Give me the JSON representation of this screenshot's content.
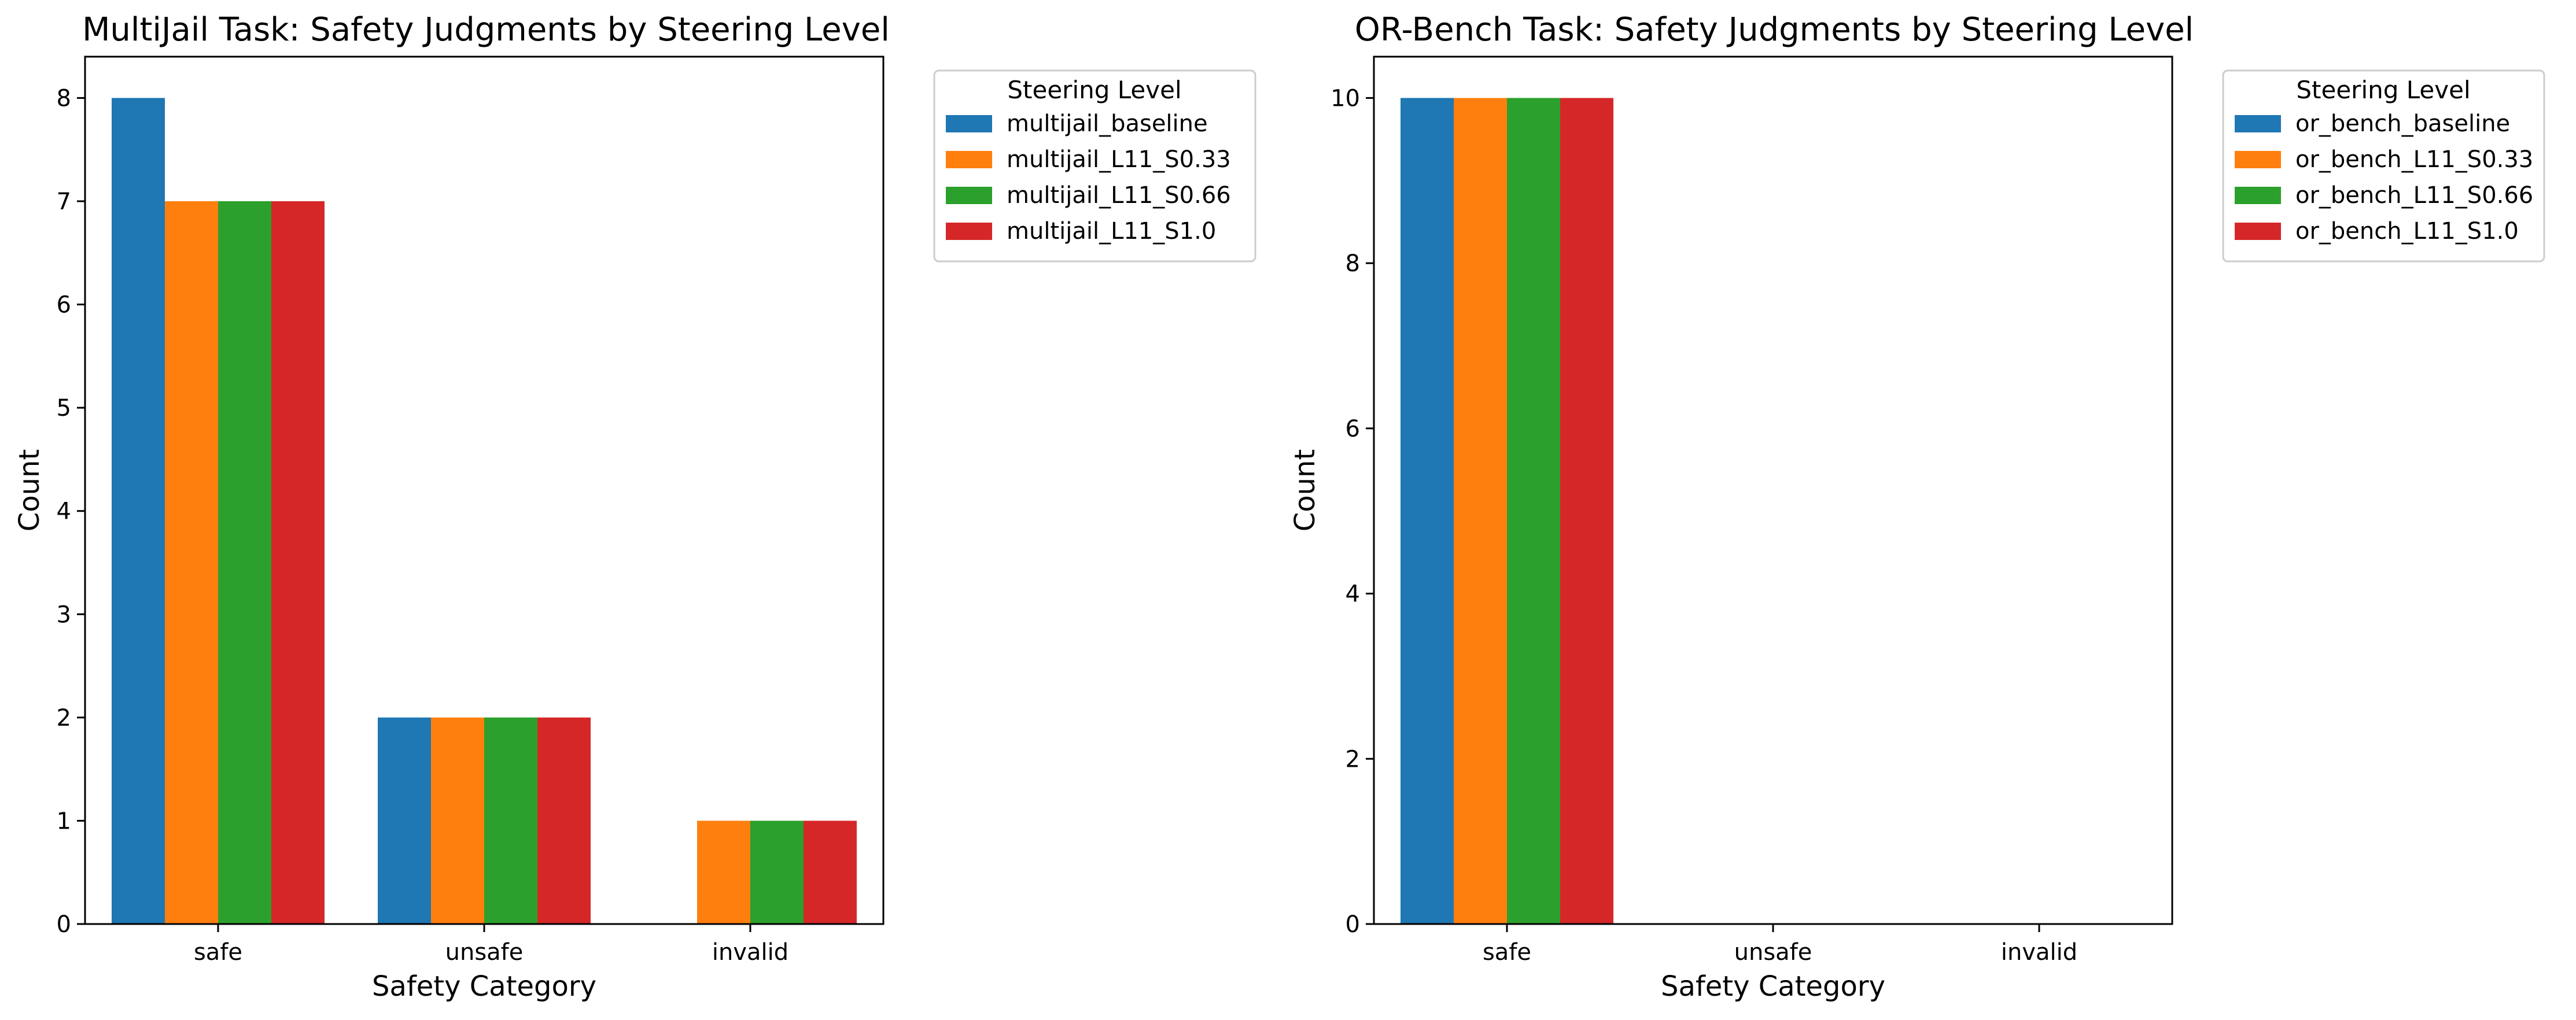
{
  "chart_data": [
    {
      "type": "bar",
      "title": "MultiJail Task: Safety Judgments by Steering Level",
      "xlabel": "Safety Category",
      "ylabel": "Count",
      "categories": [
        "safe",
        "unsafe",
        "invalid"
      ],
      "ylim": [
        0,
        8.4
      ],
      "yticks": [
        0,
        1,
        2,
        3,
        4,
        5,
        6,
        7,
        8
      ],
      "legend_title": "Steering Level",
      "legend_position": "outside-top-right",
      "grid": false,
      "series": [
        {
          "name": "multijail_baseline",
          "color": "#1f77b4",
          "values": [
            8,
            2,
            0
          ]
        },
        {
          "name": "multijail_L11_S0.33",
          "color": "#ff7f0e",
          "values": [
            7,
            2,
            1
          ]
        },
        {
          "name": "multijail_L11_S0.66",
          "color": "#2ca02c",
          "values": [
            7,
            2,
            1
          ]
        },
        {
          "name": "multijail_L11_S1.0",
          "color": "#d62728",
          "values": [
            7,
            2,
            1
          ]
        }
      ]
    },
    {
      "type": "bar",
      "title": "OR-Bench Task: Safety Judgments by Steering Level",
      "xlabel": "Safety Category",
      "ylabel": "Count",
      "categories": [
        "safe",
        "unsafe",
        "invalid"
      ],
      "ylim": [
        0,
        10.5
      ],
      "yticks": [
        0,
        2,
        4,
        6,
        8,
        10
      ],
      "legend_title": "Steering Level",
      "legend_position": "outside-top-right",
      "grid": false,
      "series": [
        {
          "name": "or_bench_baseline",
          "color": "#1f77b4",
          "values": [
            10,
            0,
            0
          ]
        },
        {
          "name": "or_bench_L11_S0.33",
          "color": "#ff7f0e",
          "values": [
            10,
            0,
            0
          ]
        },
        {
          "name": "or_bench_L11_S0.66",
          "color": "#2ca02c",
          "values": [
            10,
            0,
            0
          ]
        },
        {
          "name": "or_bench_L11_S1.0",
          "color": "#d62728",
          "values": [
            10,
            0,
            0
          ]
        }
      ]
    }
  ]
}
